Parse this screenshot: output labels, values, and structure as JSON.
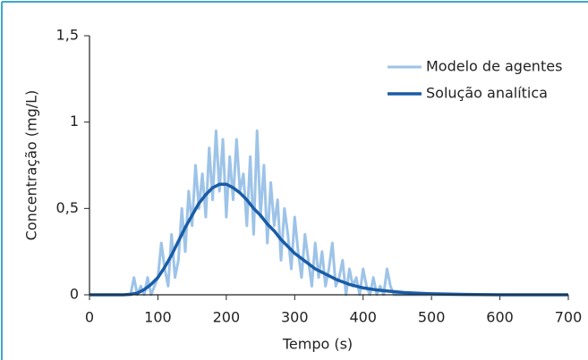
{
  "chart_data": {
    "type": "line",
    "x_label": "Tempo (s)",
    "y_label": "Concentração (mg/L)",
    "xlim": [
      0,
      700
    ],
    "xticks": [
      0,
      100,
      200,
      300,
      400,
      500,
      600,
      700
    ],
    "ylim": [
      0,
      1.5
    ],
    "yticks": [
      0,
      {
        "value": 0.5,
        "label": "0,5"
      },
      1,
      {
        "value": 1.5,
        "label": "1,5"
      }
    ],
    "legend": "upper right",
    "series": [
      {
        "name": "Modelo de agentes",
        "color": "#9dc3e8",
        "width": 3,
        "x": [
          0,
          60,
          65,
          70,
          75,
          80,
          85,
          90,
          95,
          100,
          105,
          110,
          115,
          120,
          125,
          130,
          135,
          140,
          145,
          150,
          155,
          160,
          165,
          170,
          175,
          180,
          185,
          190,
          195,
          200,
          205,
          210,
          215,
          220,
          225,
          230,
          235,
          240,
          245,
          250,
          255,
          260,
          265,
          270,
          275,
          280,
          285,
          290,
          295,
          300,
          305,
          310,
          315,
          320,
          325,
          330,
          335,
          340,
          345,
          350,
          355,
          360,
          365,
          370,
          375,
          380,
          385,
          390,
          395,
          400,
          405,
          410,
          415,
          420,
          425,
          430,
          435,
          440,
          445,
          450,
          700
        ],
        "values": [
          0,
          0,
          0.1,
          0,
          0.05,
          0,
          0.1,
          0,
          0.05,
          0.1,
          0.3,
          0.15,
          0.05,
          0.35,
          0.1,
          0.2,
          0.5,
          0.25,
          0.6,
          0.4,
          0.75,
          0.5,
          0.7,
          0.45,
          0.85,
          0.55,
          0.95,
          0.6,
          0.9,
          0.45,
          0.8,
          0.55,
          0.9,
          0.6,
          0.7,
          0.4,
          0.8,
          0.35,
          0.95,
          0.45,
          0.75,
          0.3,
          0.65,
          0.4,
          0.55,
          0.2,
          0.5,
          0.35,
          0.15,
          0.45,
          0.25,
          0.1,
          0.35,
          0.2,
          0.05,
          0.3,
          0.1,
          0.25,
          0.05,
          0.15,
          0.3,
          0.05,
          0.1,
          0.2,
          0,
          0.15,
          0.05,
          0.1,
          0,
          0.15,
          0.05,
          0,
          0.1,
          0,
          0.05,
          0,
          0.15,
          0.05,
          0,
          0,
          0
        ]
      },
      {
        "name": "Solução analítica",
        "color": "#1a5ca6",
        "width": 3.5,
        "x": [
          0,
          50,
          60,
          70,
          80,
          90,
          100,
          110,
          120,
          130,
          140,
          150,
          160,
          170,
          180,
          190,
          200,
          210,
          220,
          230,
          240,
          250,
          260,
          270,
          280,
          290,
          300,
          310,
          320,
          330,
          340,
          350,
          360,
          370,
          380,
          390,
          400,
          420,
          440,
          460,
          480,
          500,
          550,
          600,
          700
        ],
        "values": [
          0,
          0,
          0.003,
          0.01,
          0.03,
          0.06,
          0.1,
          0.16,
          0.23,
          0.31,
          0.39,
          0.46,
          0.53,
          0.58,
          0.62,
          0.64,
          0.64,
          0.62,
          0.59,
          0.55,
          0.5,
          0.46,
          0.41,
          0.37,
          0.32,
          0.28,
          0.24,
          0.21,
          0.18,
          0.15,
          0.13,
          0.11,
          0.09,
          0.075,
          0.06,
          0.05,
          0.04,
          0.028,
          0.02,
          0.013,
          0.009,
          0.006,
          0.002,
          0,
          0
        ]
      }
    ]
  }
}
